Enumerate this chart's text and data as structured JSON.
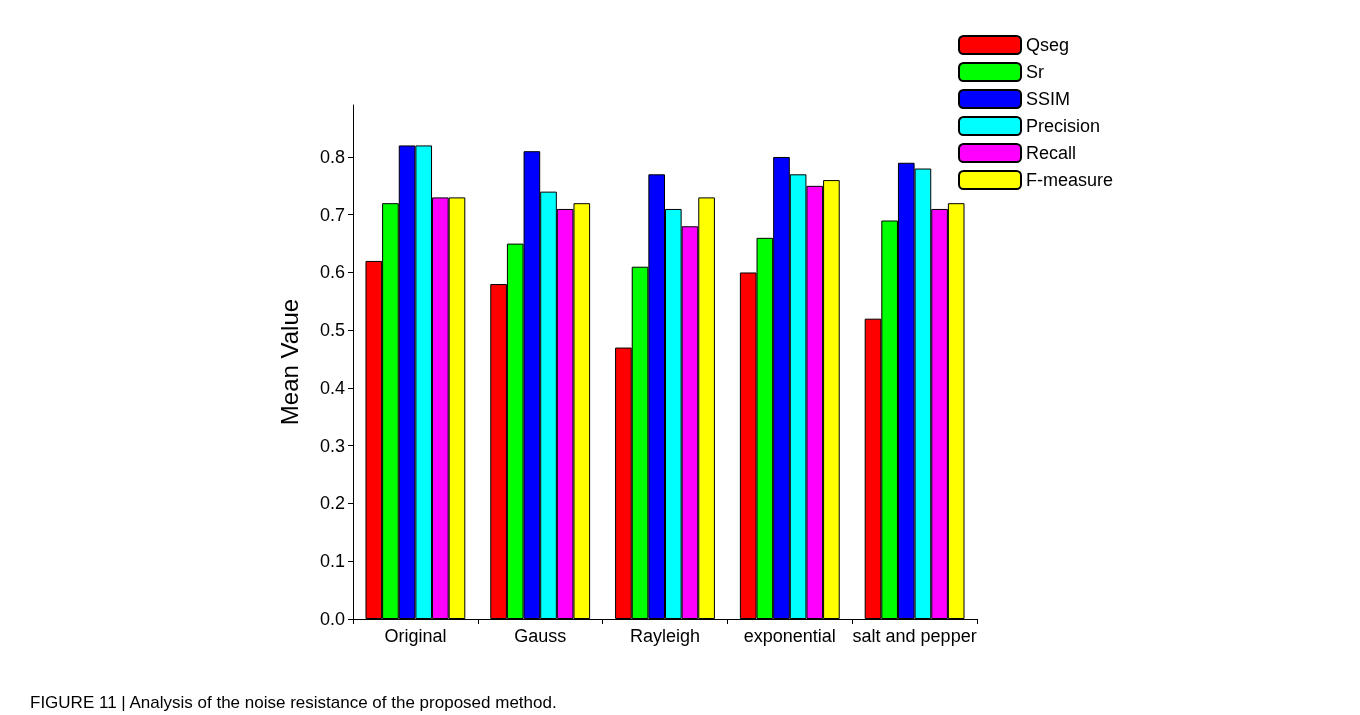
{
  "chart_data": {
    "type": "bar",
    "ylabel": "Mean Value",
    "categories": [
      "Original",
      "Gauss",
      "Rayleigh",
      "exponential",
      "salt and pepper"
    ],
    "series": [
      {
        "name": "Qseg",
        "color": "#ff0000",
        "values": [
          0.62,
          0.58,
          0.47,
          0.6,
          0.52
        ]
      },
      {
        "name": "Sr",
        "color": "#00ff00",
        "values": [
          0.72,
          0.65,
          0.61,
          0.66,
          0.69
        ]
      },
      {
        "name": "SSIM",
        "color": "#0000ff",
        "values": [
          0.82,
          0.81,
          0.77,
          0.8,
          0.79
        ]
      },
      {
        "name": "Precision",
        "color": "#00ffff",
        "values": [
          0.82,
          0.74,
          0.71,
          0.77,
          0.78
        ]
      },
      {
        "name": "Recall",
        "color": "#ff00ff",
        "values": [
          0.73,
          0.71,
          0.68,
          0.75,
          0.71
        ]
      },
      {
        "name": "F-measure",
        "color": "#ffff00",
        "values": [
          0.73,
          0.72,
          0.73,
          0.76,
          0.72
        ]
      }
    ],
    "ylim": [
      0,
      0.89
    ],
    "yticks": [
      {
        "value": 0,
        "label": "0.0"
      },
      {
        "value": 0.1,
        "label": "0.1"
      },
      {
        "value": 0.2,
        "label": "0.2"
      },
      {
        "value": 0.3,
        "label": "0.3"
      },
      {
        "value": 0.4,
        "label": "0.4"
      },
      {
        "value": 0.5,
        "label": "0.5"
      },
      {
        "value": 0.6,
        "label": "0.6"
      },
      {
        "value": 0.7,
        "label": "0.7"
      },
      {
        "value": 0.8,
        "label": "0.8"
      }
    ],
    "grid": false,
    "legend": "top right",
    "annotations": [
      "FIGURE 11 | Analysis of the noise resistance of the proposed method."
    ]
  }
}
